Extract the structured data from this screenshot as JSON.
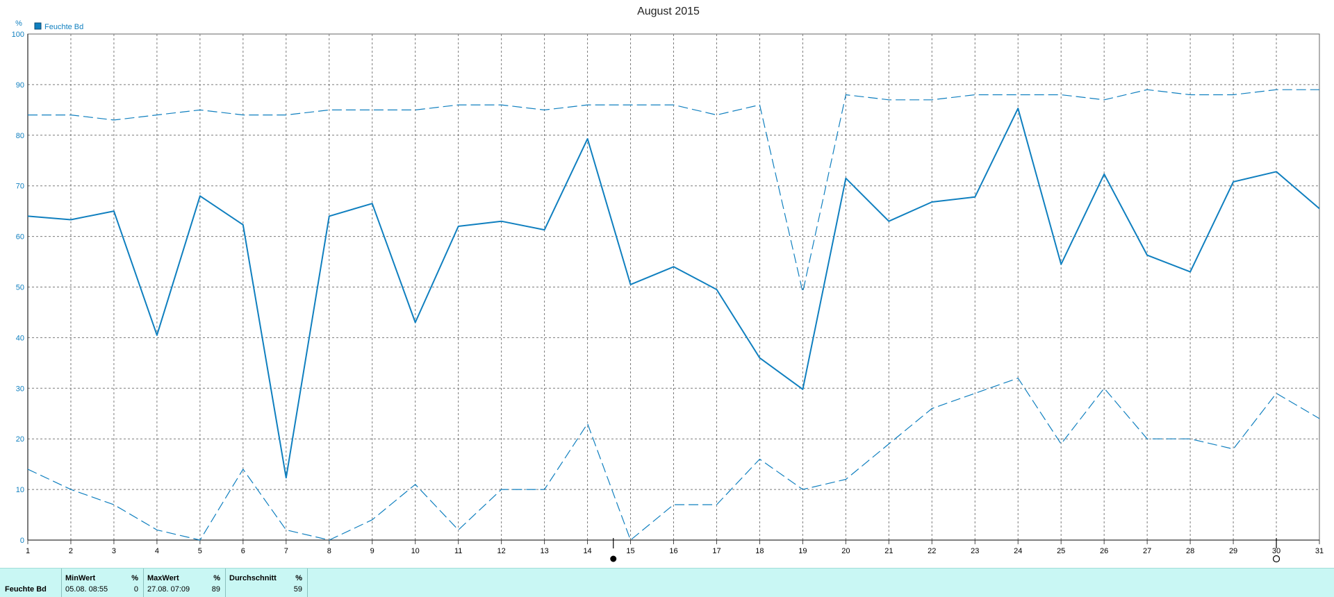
{
  "chart_data": {
    "type": "line",
    "title": "August 2015",
    "ylabel": "%",
    "xlabel": "",
    "ylim": [
      0,
      100
    ],
    "yticks": [
      0,
      10,
      20,
      30,
      40,
      50,
      60,
      70,
      80,
      90,
      100
    ],
    "x": [
      1,
      2,
      3,
      4,
      5,
      6,
      7,
      8,
      9,
      10,
      11,
      12,
      13,
      14,
      15,
      16,
      17,
      18,
      19,
      20,
      21,
      22,
      23,
      24,
      25,
      26,
      27,
      28,
      29,
      30,
      31
    ],
    "grid": true,
    "legend_position": "top-left",
    "legend": [
      "Feuchte Bd"
    ],
    "color": "#0f7fbf",
    "series": [
      {
        "name": "Feuchte Bd",
        "style": "solid",
        "values": [
          64,
          63.3,
          65,
          40.5,
          68,
          62.3,
          12.3,
          64,
          66.5,
          43,
          62,
          63,
          61.3,
          79.3,
          50.5,
          54,
          49.5,
          36,
          29.8,
          71.5,
          63,
          66.8,
          67.8,
          85.3,
          54.5,
          72.3,
          56.3,
          53,
          70.8,
          72.8,
          65.5
        ]
      },
      {
        "style": "dashed-max",
        "values": [
          84,
          84,
          83,
          84,
          85,
          84,
          84,
          85,
          85,
          85,
          86,
          86,
          85,
          86,
          86,
          86,
          84,
          86,
          49,
          88,
          87,
          87,
          88,
          88,
          88,
          87,
          89,
          88,
          88,
          89,
          89
        ]
      },
      {
        "style": "dashed-min",
        "values": [
          14,
          10,
          7,
          2,
          0,
          14,
          2,
          0,
          4,
          11,
          2,
          10,
          10,
          23,
          0,
          7,
          7,
          16,
          10,
          12,
          19,
          26,
          29,
          32,
          19,
          30,
          20,
          20,
          18,
          29,
          24
        ]
      }
    ],
    "markers": [
      {
        "x": 14.6,
        "shape": "filled-circle"
      },
      {
        "x": 30,
        "shape": "open-circle"
      }
    ]
  },
  "stats": {
    "series_label": "Feuchte Bd",
    "min": {
      "header": "MinWert",
      "unit": "%",
      "time": "05.08.  08:55",
      "value": "0"
    },
    "max": {
      "header": "MaxWert",
      "unit": "%",
      "time": "27.08.  07:09",
      "value": "89"
    },
    "avg": {
      "header": "Durchschnitt",
      "unit": "%",
      "value": "59"
    }
  }
}
